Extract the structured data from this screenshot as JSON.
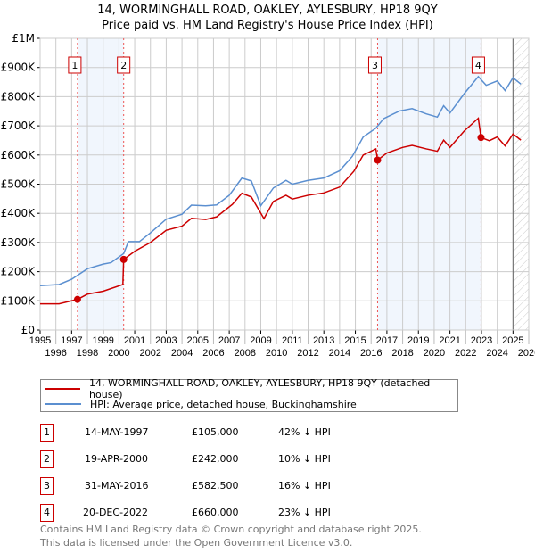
{
  "chart_data": {
    "type": "line",
    "title": "14, WORMINGHALL ROAD, OAKLEY, AYLESBURY, HP18 9QY",
    "subtitle": "Price paid vs. HM Land Registry's House Price Index (HPI)",
    "xlim": [
      1995,
      2026
    ],
    "ylim": [
      0,
      1000000
    ],
    "grid": true,
    "x_ticks": [
      "1995",
      "1996",
      "1997",
      "1998",
      "1999",
      "2000",
      "2001",
      "2002",
      "2003",
      "2004",
      "2005",
      "2006",
      "2007",
      "2008",
      "2009",
      "2010",
      "2011",
      "2012",
      "2013",
      "2014",
      "2015",
      "2016",
      "2017",
      "2018",
      "2019",
      "2020",
      "2021",
      "2022",
      "2023",
      "2024",
      "2025",
      "2026"
    ],
    "y_ticks": [
      {
        "v": 0,
        "label": "£0"
      },
      {
        "v": 100000,
        "label": "£100K"
      },
      {
        "v": 200000,
        "label": "£200K"
      },
      {
        "v": 300000,
        "label": "£300K"
      },
      {
        "v": 400000,
        "label": "£400K"
      },
      {
        "v": 500000,
        "label": "£500K"
      },
      {
        "v": 600000,
        "label": "£600K"
      },
      {
        "v": 700000,
        "label": "£700K"
      },
      {
        "v": 800000,
        "label": "£800K"
      },
      {
        "v": 900000,
        "label": "£900K"
      },
      {
        "v": 1000000,
        "label": "£1M"
      }
    ],
    "series": [
      {
        "name": "14, WORMINGHALL ROAD, OAKLEY, AYLESBURY, HP18 9QY (detached house)",
        "color": "#cc0000",
        "points": [
          [
            1995,
            90
          ],
          [
            1996.2,
            90
          ],
          [
            1997.37,
            105
          ],
          [
            1998,
            123
          ],
          [
            1999,
            133
          ],
          [
            2000.25,
            156
          ],
          [
            2000.3,
            242
          ],
          [
            2001,
            270
          ],
          [
            2002,
            300
          ],
          [
            2003,
            342
          ],
          [
            2004,
            356
          ],
          [
            2004.6,
            383
          ],
          [
            2005.5,
            379
          ],
          [
            2006.2,
            388
          ],
          [
            2007.2,
            431
          ],
          [
            2007.8,
            469
          ],
          [
            2008.4,
            456
          ],
          [
            2009.2,
            382
          ],
          [
            2009.8,
            441
          ],
          [
            2010.6,
            462
          ],
          [
            2011,
            449
          ],
          [
            2012,
            462
          ],
          [
            2013,
            470
          ],
          [
            2014,
            490
          ],
          [
            2014.9,
            544
          ],
          [
            2015.5,
            600
          ],
          [
            2016.3,
            621
          ],
          [
            2016.41,
            582.5
          ],
          [
            2017,
            607
          ],
          [
            2018,
            626
          ],
          [
            2018.6,
            633
          ],
          [
            2019.5,
            621
          ],
          [
            2020.2,
            613
          ],
          [
            2020.6,
            651
          ],
          [
            2021,
            626
          ],
          [
            2021.9,
            682
          ],
          [
            2022.8,
            726
          ],
          [
            2022.97,
            660
          ],
          [
            2023.5,
            649
          ],
          [
            2024,
            662
          ],
          [
            2024.5,
            631
          ],
          [
            2025,
            672
          ],
          [
            2025.5,
            651
          ]
        ]
      },
      {
        "name": "HPI: Average price, detached house, Buckinghamshire",
        "color": "#5b8fd0",
        "points": [
          [
            1995,
            152
          ],
          [
            1996.2,
            156
          ],
          [
            1997,
            174
          ],
          [
            1998,
            210
          ],
          [
            1999,
            226
          ],
          [
            1999.5,
            231
          ],
          [
            2000.3,
            262
          ],
          [
            2000.6,
            303
          ],
          [
            2001.3,
            303
          ],
          [
            2002,
            333
          ],
          [
            2003,
            380
          ],
          [
            2004,
            397
          ],
          [
            2004.6,
            428
          ],
          [
            2005.5,
            426
          ],
          [
            2006.2,
            429
          ],
          [
            2007,
            462
          ],
          [
            2007.8,
            521
          ],
          [
            2008.4,
            511
          ],
          [
            2009,
            426
          ],
          [
            2009.8,
            487
          ],
          [
            2010.6,
            513
          ],
          [
            2011,
            500
          ],
          [
            2012,
            513
          ],
          [
            2013,
            521
          ],
          [
            2014,
            546
          ],
          [
            2014.8,
            595
          ],
          [
            2015.5,
            662
          ],
          [
            2016.3,
            692
          ],
          [
            2016.8,
            725
          ],
          [
            2017.8,
            751
          ],
          [
            2018.6,
            759
          ],
          [
            2019.5,
            741
          ],
          [
            2020.2,
            730
          ],
          [
            2020.6,
            769
          ],
          [
            2021,
            744
          ],
          [
            2021.9,
            810
          ],
          [
            2022.8,
            869
          ],
          [
            2023.3,
            839
          ],
          [
            2024,
            854
          ],
          [
            2024.5,
            821
          ],
          [
            2025,
            865
          ],
          [
            2025.5,
            843
          ]
        ]
      }
    ],
    "units_note": "series y values in £ thousands",
    "sales": [
      {
        "n": "1",
        "x": 1997.37,
        "price": 105
      },
      {
        "n": "2",
        "x": 2000.3,
        "price": 242
      },
      {
        "n": "3",
        "x": 2016.41,
        "price": 582.5
      },
      {
        "n": "4",
        "x": 2022.97,
        "price": 660
      }
    ],
    "forecast_from": 2025.0
  },
  "legend": {
    "property": "14, WORMINGHALL ROAD, OAKLEY, AYLESBURY, HP18 9QY (detached house)",
    "hpi": "HPI: Average price, detached house, Buckinghamshire"
  },
  "transactions": [
    {
      "n": "1",
      "date": "14-MAY-1997",
      "price": "£105,000",
      "delta": "42% ↓ HPI"
    },
    {
      "n": "2",
      "date": "19-APR-2000",
      "price": "£242,000",
      "delta": "10% ↓ HPI"
    },
    {
      "n": "3",
      "date": "31-MAY-2016",
      "price": "£582,500",
      "delta": "16% ↓ HPI"
    },
    {
      "n": "4",
      "date": "20-DEC-2022",
      "price": "£660,000",
      "delta": "23% ↓ HPI"
    }
  ],
  "footer": {
    "line1": "Contains HM Land Registry data © Crown copyright and database right 2025.",
    "line2": "This data is licensed under the Open Government Licence v3.0."
  }
}
